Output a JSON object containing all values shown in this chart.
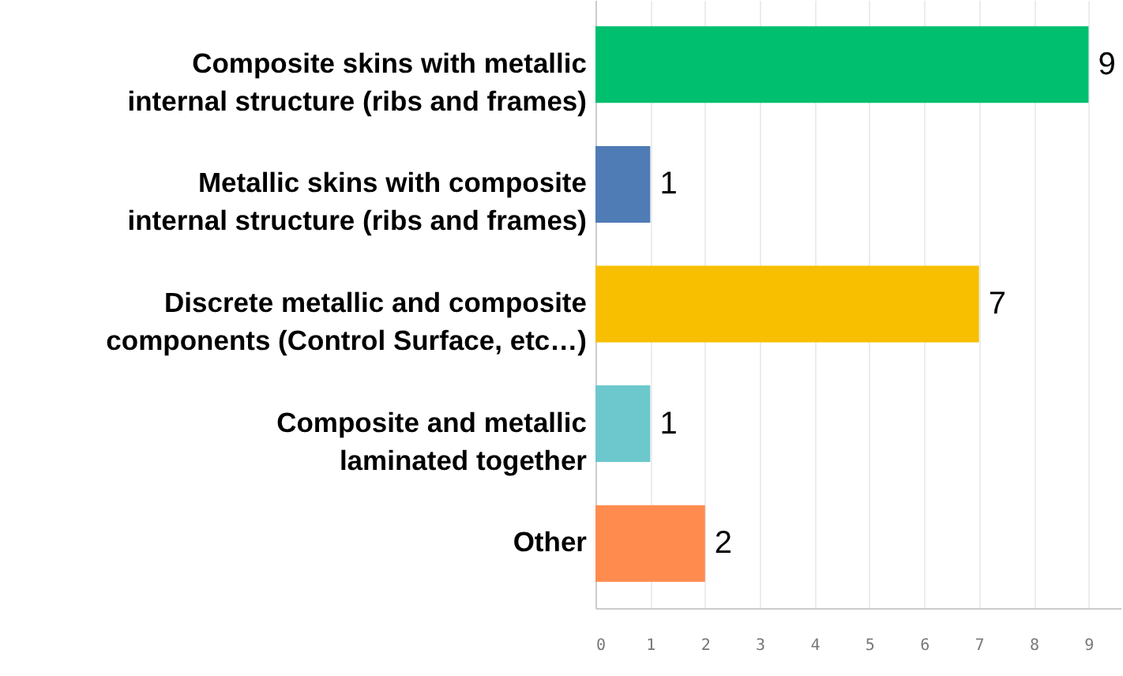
{
  "chart_data": {
    "type": "bar",
    "orientation": "horizontal",
    "categories": [
      "Composite skins with metallic internal structure (ribs and frames)",
      "Metallic skins with composite internal structure (ribs and frames)",
      "Discrete metallic and composite components (Control Surface, etc…)",
      "Composite and metallic laminated together",
      "Other"
    ],
    "values": [
      9,
      1,
      7,
      1,
      2
    ],
    "colors": [
      "#00bf6f",
      "#507cb6",
      "#f7bf00",
      "#6cc8cc",
      "#ff8b4f"
    ],
    "xlim": [
      0,
      9.6
    ],
    "xticks": [
      0,
      1,
      2,
      3,
      4,
      5,
      6,
      7,
      8,
      9
    ],
    "grid": "x",
    "data_labels": true
  }
}
